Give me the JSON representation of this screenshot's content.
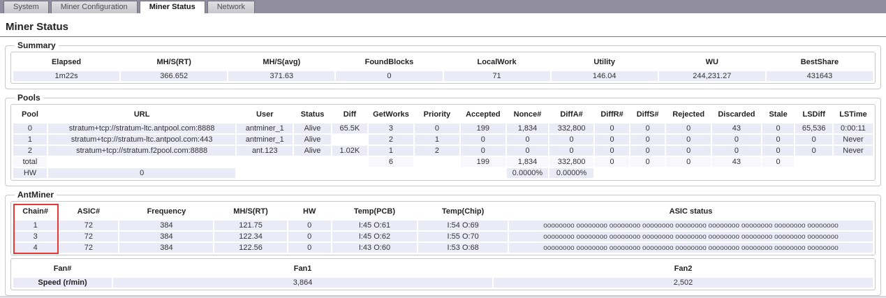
{
  "tabs": [
    {
      "label": "System",
      "active": false
    },
    {
      "label": "Miner Configuration",
      "active": false
    },
    {
      "label": "Miner Status",
      "active": true
    },
    {
      "label": "Network",
      "active": false
    }
  ],
  "page_title": "Miner Status",
  "summary": {
    "legend": "Summary",
    "headers": [
      "Elapsed",
      "MH/S(RT)",
      "MH/S(avg)",
      "FoundBlocks",
      "LocalWork",
      "Utility",
      "WU",
      "BestShare"
    ],
    "rows": [
      [
        "1m22s",
        "366.652",
        "371.63",
        "0",
        "71",
        "146.04",
        "244,231.27",
        "431643"
      ]
    ],
    "muted_rows": []
  },
  "pools": {
    "legend": "Pools",
    "headers": [
      "Pool",
      "URL",
      "User",
      "Status",
      "Diff",
      "GetWorks",
      "Priority",
      "Accepted",
      "Nonce#",
      "DiffA#",
      "DiffR#",
      "DiffS#",
      "Rejected",
      "Discarded",
      "Stale",
      "LSDiff",
      "LSTime"
    ],
    "rows": [
      [
        "0",
        "stratum+tcp://stratum-ltc.antpool.com:8888",
        "antminer_1",
        "Alive",
        "65.5K",
        "3",
        "0",
        "199",
        "1,834",
        "332,800",
        "0",
        "0",
        "0",
        "43",
        "0",
        "65,536",
        "0:00:11"
      ],
      [
        "1",
        "stratum+tcp://stratum-ltc.antpool.com:443",
        "antminer_1",
        "Alive",
        "",
        "2",
        "1",
        "0",
        "0",
        "0",
        "0",
        "0",
        "0",
        "0",
        "0",
        "0",
        "Never"
      ],
      [
        "2",
        "stratum+tcp://stratum.f2pool.com:8888",
        "ant.123",
        "Alive",
        "1.02K",
        "1",
        "2",
        "0",
        "0",
        "0",
        "0",
        "0",
        "0",
        "0",
        "0",
        "0",
        "Never"
      ],
      [
        "total",
        "",
        "",
        "",
        "",
        "6",
        "",
        "199",
        "1,834",
        "332,800",
        "0",
        "0",
        "0",
        "43",
        "0",
        "",
        ""
      ],
      [
        "HW",
        "0",
        "",
        "",
        "",
        "",
        "",
        "",
        "0.0000%",
        "0.0000%",
        "",
        "",
        "",
        "",
        "",
        "",
        ""
      ]
    ],
    "muted_rows": [
      3
    ]
  },
  "antminer": {
    "legend": "AntMiner",
    "headers": [
      "Chain#",
      "ASIC#",
      "Frequency",
      "MH/S(RT)",
      "HW",
      "Temp(PCB)",
      "Temp(Chip)",
      "ASIC status"
    ],
    "rows": [
      [
        "1",
        "72",
        "384",
        "121.75",
        "0",
        "I:45 O:61",
        "I:54 O:69",
        "oooooooo oooooooo oooooooo oooooooo oooooooo oooooooo oooooooo oooooooo oooooooo"
      ],
      [
        "3",
        "72",
        "384",
        "122.34",
        "0",
        "I:45 O:62",
        "I:55 O:70",
        "oooooooo oooooooo oooooooo oooooooo oooooooo oooooooo oooooooo oooooooo oooooooo"
      ],
      [
        "4",
        "72",
        "384",
        "122.56",
        "0",
        "I:43 O:60",
        "I:53 O:68",
        "oooooooo oooooooo oooooooo oooooooo oooooooo oooooooo oooooooo oooooooo oooooooo"
      ]
    ],
    "muted_rows": [],
    "highlight": {
      "column": "Chain#",
      "color": "#e53935"
    }
  },
  "fans": {
    "headers": [
      "Fan#",
      "Fan1",
      "Fan2"
    ],
    "rows": [
      [
        "Speed (r/min)",
        "3,864",
        "2,502"
      ]
    ],
    "muted_rows": []
  },
  "colors": {
    "tab_strip": "#8f8d9e",
    "row_stripe": "#ebebf7",
    "highlight_red": "#e53935"
  }
}
